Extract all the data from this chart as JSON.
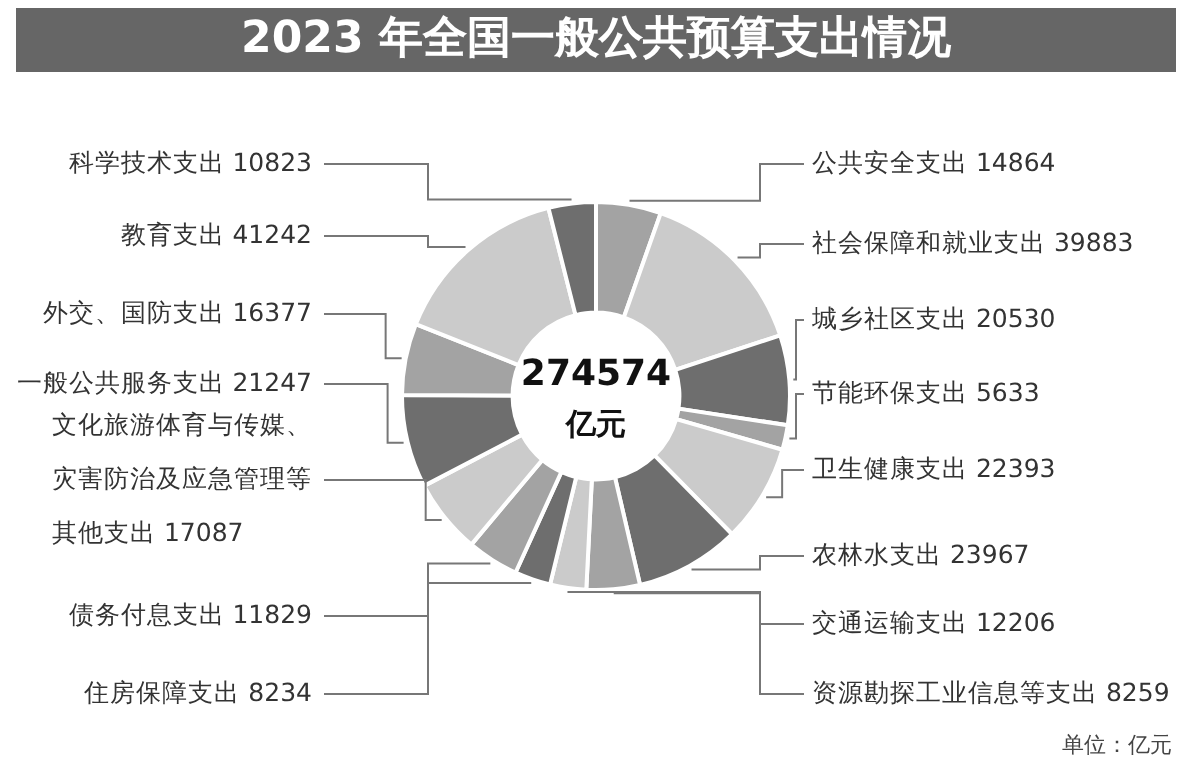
{
  "chart_data": {
    "type": "donut",
    "title": "2023 年全国一般公共预算支出情况",
    "categories": [
      "公共安全支出 14864",
      "社会保障和就业支出 39883",
      "城乡社区支出 20530",
      "节能环保支出 5633",
      "卫生健康支出 22393",
      "农林水支出 23967",
      "交通运输支出 12206",
      "资源勘探工业信息等支出 8259",
      "住房保障支出 8234",
      "债务付息支出 11829",
      "文化旅游体育与传媒、灾害防治及应急管理等其他支出 17087",
      "一般公共服务支出 21247",
      "外交、国防支出 16377",
      "教育支出 41242",
      "科学技术支出 10823"
    ],
    "values": [
      14864,
      39883,
      20530,
      5633,
      22393,
      23967,
      12206,
      8259,
      8234,
      11829,
      17087,
      21247,
      16377,
      41242,
      10823
    ],
    "colors": [
      "#a3a3a3",
      "#cbcbcb",
      "#6e6e6e",
      "#a3a3a3",
      "#cbcbcb",
      "#6e6e6e",
      "#a3a3a3",
      "#cbcbcb",
      "#6e6e6e",
      "#a3a3a3",
      "#cbcbcb",
      "#6e6e6e",
      "#a3a3a3",
      "#cbcbcb",
      "#6e6e6e"
    ],
    "annotations": [
      "274574",
      "亿元",
      "单位：亿元"
    ]
  }
}
